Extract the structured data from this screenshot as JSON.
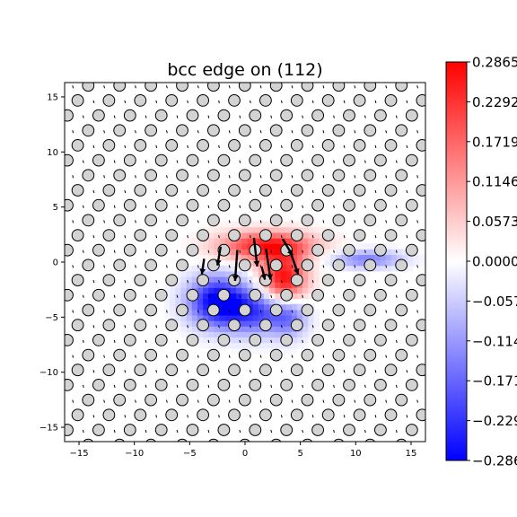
{
  "chart_data": {
    "type": "heatmap",
    "title": "bcc edge on (112)",
    "xlim": [
      -16.3,
      16.3
    ],
    "ylim": [
      -16.3,
      16.3
    ],
    "x_ticks": [
      -15,
      -10,
      -5,
      0,
      5,
      10,
      15
    ],
    "x_tick_labels": [
      "−15",
      "−10",
      "−5",
      "0",
      "5",
      "10",
      "15"
    ],
    "y_ticks": [
      15,
      10,
      5,
      0,
      -5,
      -10,
      -15
    ],
    "y_tick_labels": [
      "15",
      "10",
      "5",
      "0",
      "−5",
      "−10",
      "−15"
    ],
    "colorbar": {
      "colormap": "bwr",
      "min": -0.2865,
      "max": 0.2865,
      "ticks": [
        0.2865,
        0.2292,
        0.1719,
        0.1146,
        0.0573,
        0.0,
        -0.0573,
        -0.1146,
        -0.1719,
        -0.2292,
        -0.2865
      ],
      "tick_labels": [
        "0.2865",
        "0.2292",
        "0.1719",
        "0.1146",
        "0.0573",
        "0.0000",
        "−0.057",
        "−0.114",
        "−0.171",
        "−0.229",
        "−0.286"
      ]
    },
    "lattice": {
      "atom_spacing_x": 2.83,
      "row_spacing_y": 1.36,
      "row_shift_x": 0.94,
      "atom_radius": 0.52
    },
    "field_blobs": [
      {
        "x": 2.0,
        "y": 1.5,
        "sx": 4.2,
        "sy": 1.3,
        "amp": 0.26
      },
      {
        "x": 3.5,
        "y": -1.5,
        "sx": 2.0,
        "sy": 2.2,
        "amp": 0.28
      },
      {
        "x": -2.5,
        "y": -3.5,
        "sx": 2.6,
        "sy": 2.2,
        "amp": -0.29
      },
      {
        "x": 1.0,
        "y": -4.5,
        "sx": 3.0,
        "sy": 2.0,
        "amp": -0.2
      },
      {
        "x": 4.0,
        "y": -5.0,
        "sx": 1.6,
        "sy": 1.8,
        "amp": -0.12
      },
      {
        "x": 11.0,
        "y": 0.3,
        "sx": 3.2,
        "sy": 0.8,
        "amp": -0.14
      }
    ],
    "displacement_arrows": [
      {
        "x": -2.2,
        "y": 1.4,
        "dx": -0.3,
        "dy": -1.7
      },
      {
        "x": -0.7,
        "y": 1.1,
        "dx": -0.2,
        "dy": -2.8
      },
      {
        "x": 0.8,
        "y": 2.2,
        "dx": 0.3,
        "dy": -2.6
      },
      {
        "x": 1.9,
        "y": 1.2,
        "dx": 0.4,
        "dy": -2.8
      },
      {
        "x": 3.4,
        "y": 2.1,
        "dx": 0.9,
        "dy": -1.5
      },
      {
        "x": 4.1,
        "y": 0.9,
        "dx": 0.7,
        "dy": -2.0
      },
      {
        "x": -3.7,
        "y": 0.3,
        "dx": -0.2,
        "dy": -1.4
      },
      {
        "x": 1.5,
        "y": -0.4,
        "dx": 0.3,
        "dy": -1.2
      }
    ]
  }
}
